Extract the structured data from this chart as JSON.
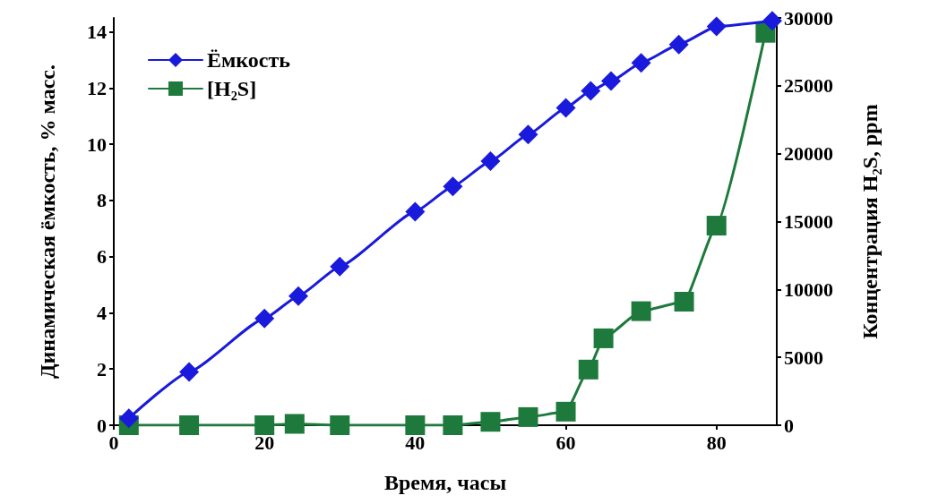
{
  "chart_data": {
    "type": "line",
    "xlabel": "Время, часы",
    "ylabel": "Динамическая ёмкость, % масс.",
    "y2label": "Концентрация H₂S, ppm",
    "xlim": [
      0,
      88
    ],
    "xticks": [
      0,
      20,
      40,
      60,
      80
    ],
    "ylim": [
      0,
      14.5
    ],
    "yticks": [
      0,
      2,
      4,
      6,
      8,
      10,
      12,
      14
    ],
    "y2lim": [
      0,
      30000
    ],
    "y2ticks": [
      0,
      5000,
      10000,
      15000,
      20000,
      25000,
      30000
    ],
    "grid": false,
    "legend": "top left",
    "line_style": "solid",
    "series": [
      {
        "name": "Ёмкость",
        "color": "#1a1adc",
        "marker": "diamond",
        "x": [
          2,
          10,
          20,
          24.5,
          30,
          40,
          45,
          50,
          55,
          60,
          63.3,
          66,
          70,
          75,
          80,
          87.4
        ],
        "values": [
          0.25,
          1.9,
          3.8,
          4.6,
          5.65,
          7.6,
          8.5,
          9.4,
          10.35,
          11.3,
          11.9,
          12.25,
          12.9,
          13.55,
          14.2,
          14.4
        ]
      },
      {
        "name": "[H₂S]",
        "color": "#1e7a3c",
        "marker": "square",
        "axis": "y2",
        "x": [
          2,
          10,
          20,
          24,
          30,
          40,
          45,
          50,
          55,
          60,
          63,
          65,
          70,
          75.7,
          80,
          86.5
        ],
        "values": [
          0,
          0,
          0,
          100,
          0,
          0,
          0,
          250,
          600,
          1000,
          4100,
          6400,
          8400,
          9100,
          14700,
          28900
        ]
      }
    ]
  }
}
